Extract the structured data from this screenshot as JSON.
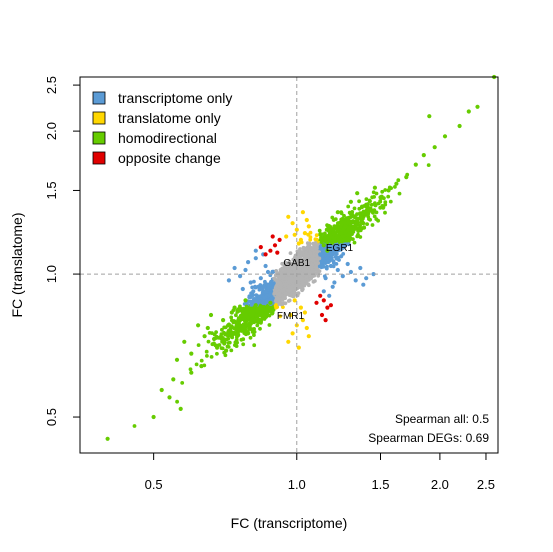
{
  "chart_data": {
    "type": "scatter",
    "title": "",
    "xlabel": "FC (transcriptome)",
    "ylabel": "FC (translatome)",
    "xscale": "log",
    "yscale": "log",
    "xlim": [
      0.35,
      2.65
    ],
    "ylim": [
      0.42,
      2.6
    ],
    "xticks": [
      {
        "value": 0.5,
        "label": "0.5"
      },
      {
        "value": 1.0,
        "label": "1.0"
      },
      {
        "value": 1.5,
        "label": "1.5"
      },
      {
        "value": 2.0,
        "label": "2.0"
      },
      {
        "value": 2.5,
        "label": "2.5"
      }
    ],
    "yticks": [
      {
        "value": 0.5,
        "label": "0.5"
      },
      {
        "value": 1.0,
        "label": "1.0"
      },
      {
        "value": 1.5,
        "label": "1.5"
      },
      {
        "value": 2.0,
        "label": "2.0"
      },
      {
        "value": 2.5,
        "label": "2.5"
      }
    ],
    "reference_lines": {
      "x": 1.0,
      "y": 1.0,
      "style": "dashed"
    },
    "legend": {
      "placement": "top-left",
      "entries": [
        {
          "label": "transcriptome only",
          "color": "#5b9bd5"
        },
        {
          "label": "translatome only",
          "color": "#ffd700"
        },
        {
          "label": "homodirectional",
          "color": "#66cc00"
        },
        {
          "label": "opposite change",
          "color": "#e00000"
        }
      ]
    },
    "colors": {
      "non_significant": "#b3b3b3",
      "transcriptome_only": "#5b9bd5",
      "translatome_only": "#ffd700",
      "homodirectional": "#66cc00",
      "opposite_change": "#e00000"
    },
    "series": [
      {
        "name": "transcriptome only",
        "color": "#5b9bd5",
        "points": [
          [
            0.78,
            1.02
          ],
          [
            0.8,
            0.96
          ],
          [
            0.82,
            1.08
          ],
          [
            0.84,
            0.98
          ],
          [
            0.86,
            1.04
          ],
          [
            0.83,
            0.94
          ],
          [
            0.79,
            1.06
          ],
          [
            0.76,
            0.99
          ],
          [
            0.81,
            0.92
          ],
          [
            0.85,
            1.1
          ],
          [
            0.88,
            0.95
          ],
          [
            0.87,
            1.01
          ],
          [
            0.74,
            1.03
          ],
          [
            0.72,
            0.97
          ],
          [
            0.77,
            0.93
          ],
          [
            0.82,
            1.12
          ],
          [
            1.15,
            0.98
          ],
          [
            1.18,
            1.04
          ],
          [
            1.2,
            0.96
          ],
          [
            1.22,
            1.02
          ],
          [
            1.16,
            1.08
          ],
          [
            1.25,
            0.99
          ],
          [
            1.28,
            1.05
          ],
          [
            1.14,
            0.92
          ],
          [
            1.19,
            0.94
          ],
          [
            1.3,
            1.01
          ],
          [
            1.33,
            0.97
          ],
          [
            1.24,
            1.09
          ],
          [
            1.36,
            1.03
          ],
          [
            1.4,
            0.98
          ],
          [
            1.12,
            1.1
          ],
          [
            1.17,
            0.9
          ],
          [
            1.45,
            1.0
          ],
          [
            1.38,
            0.95
          ]
        ]
      },
      {
        "name": "translatome only",
        "color": "#ffd700",
        "points": [
          [
            0.95,
            1.2
          ],
          [
            1.0,
            1.24
          ],
          [
            1.04,
            1.22
          ],
          [
            0.98,
            1.28
          ],
          [
            1.02,
            1.18
          ],
          [
            1.06,
            1.26
          ],
          [
            0.96,
            1.32
          ],
          [
            1.03,
            1.35
          ],
          [
            1.01,
            1.16
          ],
          [
            0.99,
            1.21
          ],
          [
            1.05,
            1.3
          ],
          [
            0.97,
            0.82
          ],
          [
            1.0,
            0.78
          ],
          [
            1.03,
            0.8
          ],
          [
            0.98,
            0.75
          ],
          [
            1.02,
            0.85
          ],
          [
            1.05,
            0.77
          ],
          [
            0.96,
            0.72
          ],
          [
            1.01,
            0.7
          ],
          [
            1.04,
            0.83
          ],
          [
            0.99,
            0.88
          ],
          [
            1.06,
            0.74
          ]
        ]
      },
      {
        "name": "homodirectional",
        "color": "#66cc00",
        "points": [
          [
            0.4,
            0.45
          ],
          [
            0.5,
            0.5
          ],
          [
            0.52,
            0.57
          ],
          [
            0.55,
            0.6
          ],
          [
            0.56,
            0.66
          ],
          [
            0.58,
            0.72
          ],
          [
            0.6,
            0.68
          ],
          [
            0.62,
            0.78
          ],
          [
            0.64,
            0.74
          ],
          [
            0.66,
            0.82
          ],
          [
            0.68,
            0.7
          ],
          [
            0.7,
            0.8
          ],
          [
            0.72,
            0.76
          ],
          [
            0.74,
            0.85
          ],
          [
            0.76,
            0.8
          ],
          [
            0.78,
            0.88
          ],
          [
            0.8,
            0.82
          ],
          [
            0.82,
            0.86
          ],
          [
            0.84,
            0.79
          ],
          [
            0.86,
            0.84
          ],
          [
            0.88,
            0.87
          ],
          [
            0.6,
            0.62
          ],
          [
            0.57,
            0.52
          ],
          [
            0.63,
            0.64
          ],
          [
            0.67,
            0.73
          ],
          [
            0.71,
            0.69
          ],
          [
            0.54,
            0.55
          ],
          [
            0.65,
            0.77
          ],
          [
            0.73,
            0.83
          ],
          [
            0.79,
            0.75
          ],
          [
            1.14,
            1.15
          ],
          [
            1.18,
            1.2
          ],
          [
            1.2,
            1.26
          ],
          [
            1.24,
            1.22
          ],
          [
            1.28,
            1.3
          ],
          [
            1.32,
            1.25
          ],
          [
            1.36,
            1.34
          ],
          [
            1.4,
            1.4
          ],
          [
            1.44,
            1.36
          ],
          [
            1.5,
            1.45
          ],
          [
            1.56,
            1.5
          ],
          [
            1.62,
            1.55
          ],
          [
            1.7,
            1.6
          ],
          [
            1.78,
            1.7
          ],
          [
            1.85,
            1.78
          ],
          [
            1.95,
            1.85
          ],
          [
            2.05,
            1.95
          ],
          [
            2.2,
            2.05
          ],
          [
            2.3,
            2.2
          ],
          [
            2.4,
            2.25
          ],
          [
            2.6,
            2.6
          ],
          [
            1.22,
            1.35
          ],
          [
            1.3,
            1.42
          ],
          [
            1.38,
            1.28
          ],
          [
            1.16,
            1.12
          ],
          [
            1.46,
            1.52
          ],
          [
            1.26,
            1.18
          ],
          [
            1.34,
            1.48
          ],
          [
            1.52,
            1.38
          ],
          [
            1.9,
            2.15
          ]
        ]
      },
      {
        "name": "opposite change",
        "color": "#e00000",
        "points": [
          [
            0.88,
            1.12
          ],
          [
            0.9,
            1.15
          ],
          [
            0.86,
            1.1
          ],
          [
            0.92,
            1.18
          ],
          [
            0.89,
            1.2
          ],
          [
            0.84,
            1.14
          ],
          [
            0.91,
            1.11
          ],
          [
            1.12,
            0.9
          ],
          [
            1.14,
            0.88
          ],
          [
            1.16,
            0.85
          ],
          [
            1.13,
            0.82
          ],
          [
            1.18,
            0.86
          ],
          [
            1.15,
            0.8
          ],
          [
            1.1,
            0.87
          ]
        ]
      }
    ],
    "annotations": [
      {
        "text": "GAB1",
        "x": 1.0,
        "y": 1.06
      },
      {
        "text": "EGR1",
        "x": 1.23,
        "y": 1.14
      },
      {
        "text": "FMR1",
        "x": 0.97,
        "y": 0.82
      }
    ],
    "stats": [
      {
        "text": "Spearman all: 0.5"
      },
      {
        "text": "Spearman DEGs: 0.69"
      }
    ]
  }
}
